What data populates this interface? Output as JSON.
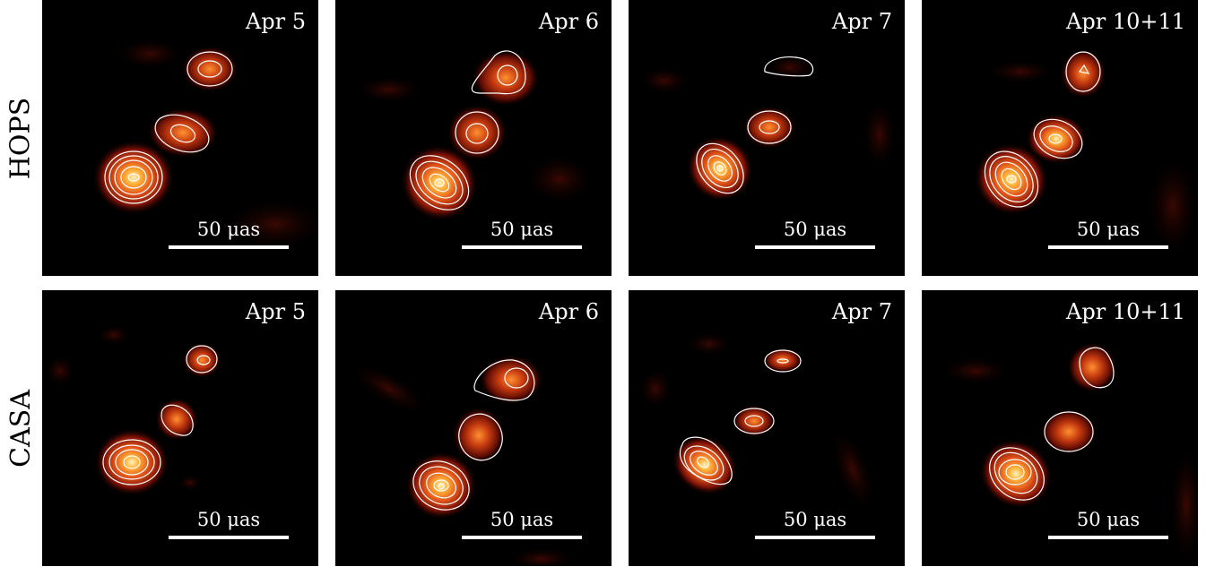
{
  "rows": [
    {
      "label": "HOPS",
      "panels": [
        {
          "date": "Apr 5",
          "scale": "50 μas"
        },
        {
          "date": "Apr 6",
          "scale": "50 μas"
        },
        {
          "date": "Apr 7",
          "scale": "50 μas"
        },
        {
          "date": "Apr 10+11",
          "scale": "50 μas"
        }
      ]
    },
    {
      "label": "CASA",
      "panels": [
        {
          "date": "Apr 5",
          "scale": "50 μas"
        },
        {
          "date": "Apr 6",
          "scale": "50 μas"
        },
        {
          "date": "Apr 7",
          "scale": "50 μas"
        },
        {
          "date": "Apr 10+11",
          "scale": "50 μas"
        }
      ]
    }
  ],
  "colormap": "afmhot",
  "contour_color": "#ffffff"
}
